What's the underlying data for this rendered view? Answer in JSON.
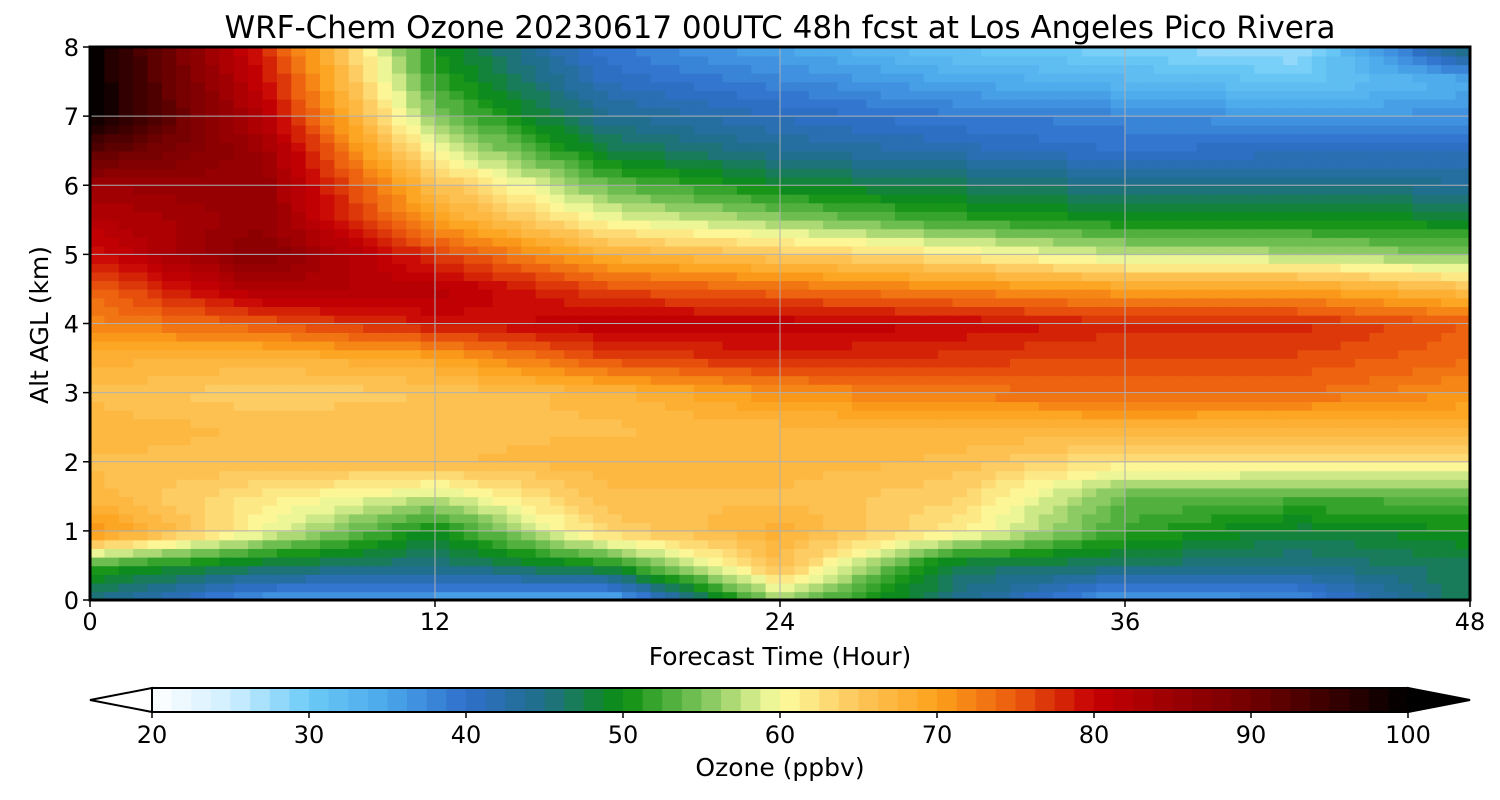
{
  "chart_data": {
    "type": "heatmap",
    "title": "WRF-Chem Ozone  20230617 00UTC 48h fcst at Los Angeles Pico Rivera",
    "xlabel": "Forecast Time (Hour)",
    "ylabel": "Alt AGL (km)",
    "xlim": [
      0,
      48
    ],
    "ylim": [
      0,
      8
    ],
    "x_ticks": [
      0,
      12,
      24,
      36,
      48
    ],
    "y_ticks": [
      0,
      1,
      2,
      3,
      4,
      5,
      6,
      7,
      8
    ],
    "grid": true,
    "x": [
      0,
      6,
      12,
      18,
      24,
      30,
      36,
      42,
      48
    ],
    "y": [
      0,
      0.5,
      1,
      1.5,
      2,
      2.5,
      3,
      3.5,
      4,
      4.5,
      5,
      5.5,
      6,
      6.5,
      7,
      7.5,
      8
    ],
    "z": [
      [
        45,
        36,
        35,
        33,
        56,
        45,
        35,
        37,
        48
      ],
      [
        52,
        47,
        45,
        50,
        66,
        47,
        46,
        45,
        47
      ],
      [
        72,
        60,
        49,
        64,
        68,
        62,
        52,
        48,
        50
      ],
      [
        67,
        62,
        58,
        66,
        66,
        64,
        54,
        53,
        53
      ],
      [
        66,
        66,
        66,
        67,
        67,
        66,
        62,
        62,
        62
      ],
      [
        67,
        66,
        66,
        66,
        67,
        67,
        68,
        67,
        68
      ],
      [
        66,
        64,
        65,
        67,
        71,
        73,
        74,
        74,
        71
      ],
      [
        68,
        67,
        69,
        76,
        78,
        77,
        76,
        76,
        74
      ],
      [
        72,
        75,
        79,
        81,
        81,
        80,
        78,
        78,
        75
      ],
      [
        74,
        83,
        82,
        76,
        74,
        72,
        70,
        70,
        66
      ],
      [
        79,
        88,
        77,
        68,
        65,
        62,
        58,
        57,
        55
      ],
      [
        82,
        86,
        70,
        60,
        56,
        52,
        50,
        50,
        49
      ],
      [
        85,
        86,
        66,
        54,
        49,
        47,
        45,
        45,
        44
      ],
      [
        92,
        85,
        60,
        48,
        44,
        42,
        40,
        41,
        41
      ],
      [
        100,
        82,
        55,
        44,
        41,
        39,
        38,
        36,
        37
      ],
      [
        100,
        80,
        52,
        41,
        38,
        35,
        33,
        31,
        34
      ],
      [
        100,
        78,
        50,
        39,
        35,
        31,
        29,
        27,
        47
      ]
    ],
    "colorbar": {
      "label": "Ozone  (ppbv)",
      "min": 20,
      "max": 100,
      "ticks": [
        20,
        30,
        40,
        50,
        60,
        70,
        80,
        90,
        100
      ],
      "extend": "both",
      "stops": [
        {
          "v": 20,
          "c": "#ffffff"
        },
        {
          "v": 25,
          "c": "#cfeeff"
        },
        {
          "v": 30,
          "c": "#6ccbf7"
        },
        {
          "v": 35,
          "c": "#4aa6ea"
        },
        {
          "v": 40,
          "c": "#2f6fcc"
        },
        {
          "v": 45,
          "c": "#1f6f86"
        },
        {
          "v": 50,
          "c": "#0b8f10"
        },
        {
          "v": 55,
          "c": "#7cc45a"
        },
        {
          "v": 60,
          "c": "#fdfda0"
        },
        {
          "v": 65,
          "c": "#fdc55a"
        },
        {
          "v": 70,
          "c": "#fca21b"
        },
        {
          "v": 75,
          "c": "#eb5a0d"
        },
        {
          "v": 80,
          "c": "#c60004"
        },
        {
          "v": 90,
          "c": "#720000"
        },
        {
          "v": 100,
          "c": "#000000"
        }
      ]
    }
  }
}
